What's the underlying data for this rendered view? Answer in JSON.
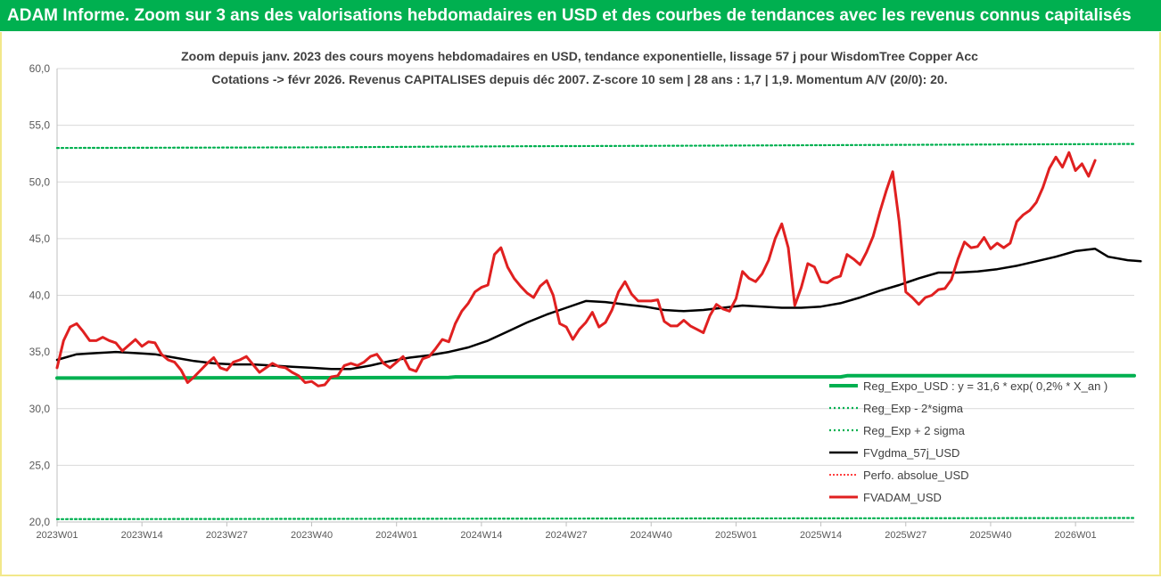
{
  "banner": {
    "title": "ADAM Informe. Zoom sur 3 ans des valorisations hebdomadaires en USD et des courbes de tendances avec les revenus connus capitalisés"
  },
  "chart_data": {
    "type": "line",
    "title_line1": "Zoom depuis janv. 2023 des cours moyens hebdomadaires en USD, tendance exponentielle, lissage 57 j pour WisdomTree Copper Acc",
    "title_line2": "Cotations -> févr 2026.  Revenus CAPITALISES depuis déc 2007. Z-score 10 sem | 28 ans : 1,7 | 1,9. Momentum A/V (20/0): 20.",
    "ylim": [
      20,
      60
    ],
    "y_ticks": [
      "60,0",
      "55,0",
      "50,0",
      "45,0",
      "40,0",
      "35,0",
      "30,0",
      "25,0",
      "20,0"
    ],
    "y_tick_values": [
      60,
      55,
      50,
      45,
      40,
      35,
      30,
      25,
      20
    ],
    "x_tick_labels": [
      "2023W01",
      "2023W14",
      "2023W27",
      "2023W40",
      "2024W01",
      "2024W14",
      "2024W27",
      "2024W40",
      "2025W01",
      "2025W14",
      "2025W27",
      "2025W40",
      "2026W01"
    ],
    "x_tick_index": [
      0,
      13,
      26,
      39,
      52,
      65,
      78,
      91,
      104,
      117,
      130,
      143,
      156
    ],
    "n_weeks": 166,
    "colors": {
      "reg": "#00b050",
      "fvgdma": "#000000",
      "perfo": "#ff0000",
      "fvadam": "#e02020",
      "grid": "#d9d9d9",
      "axis": "#bfbfbf",
      "title": "#1f3864",
      "tick": "#595959"
    },
    "legend": {
      "position": "bottom-right",
      "entries": [
        "Reg_Expo_USD : y = 31,6 * exp( 0,2% *  X_an )",
        "Reg_Exp - 2*sigma",
        "Reg_Exp + 2 sigma",
        "FVgdma_57j_USD",
        "Perfo. absolue_USD",
        "FVADAM_USD"
      ]
    },
    "series": [
      {
        "name": "Reg_Expo_USD",
        "style": "solid-thick",
        "points": [
          [
            0,
            32.7
          ],
          [
            60,
            32.75
          ],
          [
            61,
            32.8
          ],
          [
            120,
            32.8
          ],
          [
            121,
            32.9
          ],
          [
            165,
            32.9
          ]
        ]
      },
      {
        "name": "Reg_Exp - 2*sigma",
        "style": "dotted",
        "points": [
          [
            0,
            20.25
          ],
          [
            165,
            20.35
          ]
        ]
      },
      {
        "name": "Reg_Exp + 2 sigma",
        "style": "dotted",
        "points": [
          [
            0,
            53.0
          ],
          [
            40,
            53.05
          ],
          [
            70,
            53.15
          ],
          [
            100,
            53.2
          ],
          [
            140,
            53.3
          ],
          [
            165,
            53.35
          ]
        ]
      },
      {
        "name": "FVgdma_57j_USD",
        "style": "solid",
        "points": [
          [
            0,
            34.3
          ],
          [
            3,
            34.8
          ],
          [
            6,
            34.9
          ],
          [
            9,
            35.0
          ],
          [
            12,
            34.9
          ],
          [
            15,
            34.8
          ],
          [
            18,
            34.5
          ],
          [
            21,
            34.2
          ],
          [
            24,
            34.0
          ],
          [
            27,
            33.9
          ],
          [
            30,
            33.9
          ],
          [
            33,
            33.8
          ],
          [
            36,
            33.7
          ],
          [
            39,
            33.6
          ],
          [
            42,
            33.5
          ],
          [
            45,
            33.5
          ],
          [
            48,
            33.8
          ],
          [
            51,
            34.2
          ],
          [
            54,
            34.5
          ],
          [
            57,
            34.7
          ],
          [
            60,
            35.0
          ],
          [
            63,
            35.4
          ],
          [
            66,
            36.0
          ],
          [
            69,
            36.8
          ],
          [
            72,
            37.6
          ],
          [
            75,
            38.3
          ],
          [
            78,
            38.9
          ],
          [
            81,
            39.5
          ],
          [
            84,
            39.4
          ],
          [
            87,
            39.2
          ],
          [
            90,
            39.0
          ],
          [
            93,
            38.7
          ],
          [
            96,
            38.6
          ],
          [
            99,
            38.7
          ],
          [
            102,
            38.9
          ],
          [
            105,
            39.1
          ],
          [
            108,
            39.0
          ],
          [
            111,
            38.9
          ],
          [
            114,
            38.9
          ],
          [
            117,
            39.0
          ],
          [
            120,
            39.3
          ],
          [
            123,
            39.8
          ],
          [
            126,
            40.4
          ],
          [
            129,
            40.9
          ],
          [
            132,
            41.5
          ],
          [
            135,
            42.0
          ],
          [
            138,
            42.0
          ],
          [
            141,
            42.1
          ],
          [
            144,
            42.3
          ],
          [
            147,
            42.6
          ],
          [
            150,
            43.0
          ],
          [
            153,
            43.4
          ],
          [
            156,
            43.9
          ],
          [
            159,
            44.1
          ],
          [
            161,
            43.4
          ],
          [
            164,
            43.1
          ],
          [
            166,
            43.0
          ]
        ]
      },
      {
        "name": "FVADAM_USD",
        "style": "solid-red",
        "points": [
          [
            0,
            33.6
          ],
          [
            1,
            36.0
          ],
          [
            2,
            37.2
          ],
          [
            3,
            37.5
          ],
          [
            4,
            36.8
          ],
          [
            5,
            36.0
          ],
          [
            6,
            36.0
          ],
          [
            7,
            36.3
          ],
          [
            8,
            36.0
          ],
          [
            9,
            35.8
          ],
          [
            10,
            35.1
          ],
          [
            11,
            35.6
          ],
          [
            12,
            36.1
          ],
          [
            13,
            35.5
          ],
          [
            14,
            35.9
          ],
          [
            15,
            35.8
          ],
          [
            16,
            34.8
          ],
          [
            17,
            34.3
          ],
          [
            18,
            34.1
          ],
          [
            19,
            33.4
          ],
          [
            20,
            32.3
          ],
          [
            21,
            32.8
          ],
          [
            22,
            33.4
          ],
          [
            23,
            34.0
          ],
          [
            24,
            34.5
          ],
          [
            25,
            33.6
          ],
          [
            26,
            33.4
          ],
          [
            27,
            34.1
          ],
          [
            28,
            34.3
          ],
          [
            29,
            34.6
          ],
          [
            30,
            33.9
          ],
          [
            31,
            33.2
          ],
          [
            32,
            33.6
          ],
          [
            33,
            34.0
          ],
          [
            34,
            33.7
          ],
          [
            35,
            33.6
          ],
          [
            36,
            33.2
          ],
          [
            37,
            32.9
          ],
          [
            38,
            32.3
          ],
          [
            39,
            32.4
          ],
          [
            40,
            32.0
          ],
          [
            41,
            32.1
          ],
          [
            42,
            32.8
          ],
          [
            43,
            32.9
          ],
          [
            44,
            33.8
          ],
          [
            45,
            34.0
          ],
          [
            46,
            33.8
          ],
          [
            47,
            34.1
          ],
          [
            48,
            34.6
          ],
          [
            49,
            34.8
          ],
          [
            50,
            34.0
          ],
          [
            51,
            33.6
          ],
          [
            52,
            34.1
          ],
          [
            53,
            34.6
          ],
          [
            54,
            33.5
          ],
          [
            55,
            33.3
          ],
          [
            56,
            34.4
          ],
          [
            57,
            34.6
          ],
          [
            58,
            35.3
          ],
          [
            59,
            36.1
          ],
          [
            60,
            35.9
          ],
          [
            61,
            37.5
          ],
          [
            62,
            38.6
          ],
          [
            63,
            39.3
          ],
          [
            64,
            40.3
          ],
          [
            65,
            40.7
          ],
          [
            66,
            40.9
          ],
          [
            67,
            43.6
          ],
          [
            68,
            44.2
          ],
          [
            69,
            42.5
          ],
          [
            70,
            41.5
          ],
          [
            71,
            40.8
          ],
          [
            72,
            40.2
          ],
          [
            73,
            39.8
          ],
          [
            74,
            40.8
          ],
          [
            75,
            41.3
          ],
          [
            76,
            40.0
          ],
          [
            77,
            37.5
          ],
          [
            78,
            37.2
          ],
          [
            79,
            36.1
          ],
          [
            80,
            37.0
          ],
          [
            81,
            37.6
          ],
          [
            82,
            38.5
          ],
          [
            83,
            37.2
          ],
          [
            84,
            37.6
          ],
          [
            85,
            38.7
          ],
          [
            86,
            40.3
          ],
          [
            87,
            41.2
          ],
          [
            88,
            40.1
          ],
          [
            89,
            39.5
          ],
          [
            90,
            39.5
          ],
          [
            91,
            39.5
          ],
          [
            92,
            39.6
          ],
          [
            93,
            37.7
          ],
          [
            94,
            37.3
          ],
          [
            95,
            37.3
          ],
          [
            96,
            37.8
          ],
          [
            97,
            37.3
          ],
          [
            98,
            37.0
          ],
          [
            99,
            36.7
          ],
          [
            100,
            38.2
          ],
          [
            101,
            39.2
          ],
          [
            102,
            38.8
          ],
          [
            103,
            38.6
          ],
          [
            104,
            39.7
          ],
          [
            105,
            42.1
          ],
          [
            106,
            41.5
          ],
          [
            107,
            41.2
          ],
          [
            108,
            41.9
          ],
          [
            109,
            43.1
          ],
          [
            110,
            45.0
          ],
          [
            111,
            46.3
          ],
          [
            112,
            44.2
          ],
          [
            113,
            39.1
          ],
          [
            114,
            40.7
          ],
          [
            115,
            42.8
          ],
          [
            116,
            42.5
          ],
          [
            117,
            41.2
          ],
          [
            118,
            41.1
          ],
          [
            119,
            41.5
          ],
          [
            120,
            41.7
          ],
          [
            121,
            43.6
          ],
          [
            122,
            43.2
          ],
          [
            123,
            42.7
          ],
          [
            124,
            43.8
          ],
          [
            125,
            45.2
          ],
          [
            126,
            47.3
          ],
          [
            127,
            49.2
          ],
          [
            128,
            50.9
          ],
          [
            129,
            46.5
          ],
          [
            130,
            40.3
          ],
          [
            131,
            39.8
          ],
          [
            132,
            39.2
          ],
          [
            133,
            39.8
          ],
          [
            134,
            40.0
          ],
          [
            135,
            40.5
          ],
          [
            136,
            40.6
          ],
          [
            137,
            41.4
          ],
          [
            138,
            43.2
          ],
          [
            139,
            44.7
          ],
          [
            140,
            44.2
          ],
          [
            141,
            44.3
          ],
          [
            142,
            45.1
          ],
          [
            143,
            44.1
          ],
          [
            144,
            44.6
          ],
          [
            145,
            44.2
          ],
          [
            146,
            44.6
          ],
          [
            147,
            46.5
          ],
          [
            148,
            47.1
          ],
          [
            149,
            47.5
          ],
          [
            150,
            48.2
          ],
          [
            151,
            49.5
          ],
          [
            152,
            51.2
          ],
          [
            153,
            52.2
          ],
          [
            154,
            51.3
          ],
          [
            155,
            52.6
          ],
          [
            156,
            51.0
          ],
          [
            157,
            51.6
          ],
          [
            158,
            50.5
          ],
          [
            159,
            51.9
          ]
        ]
      }
    ]
  }
}
